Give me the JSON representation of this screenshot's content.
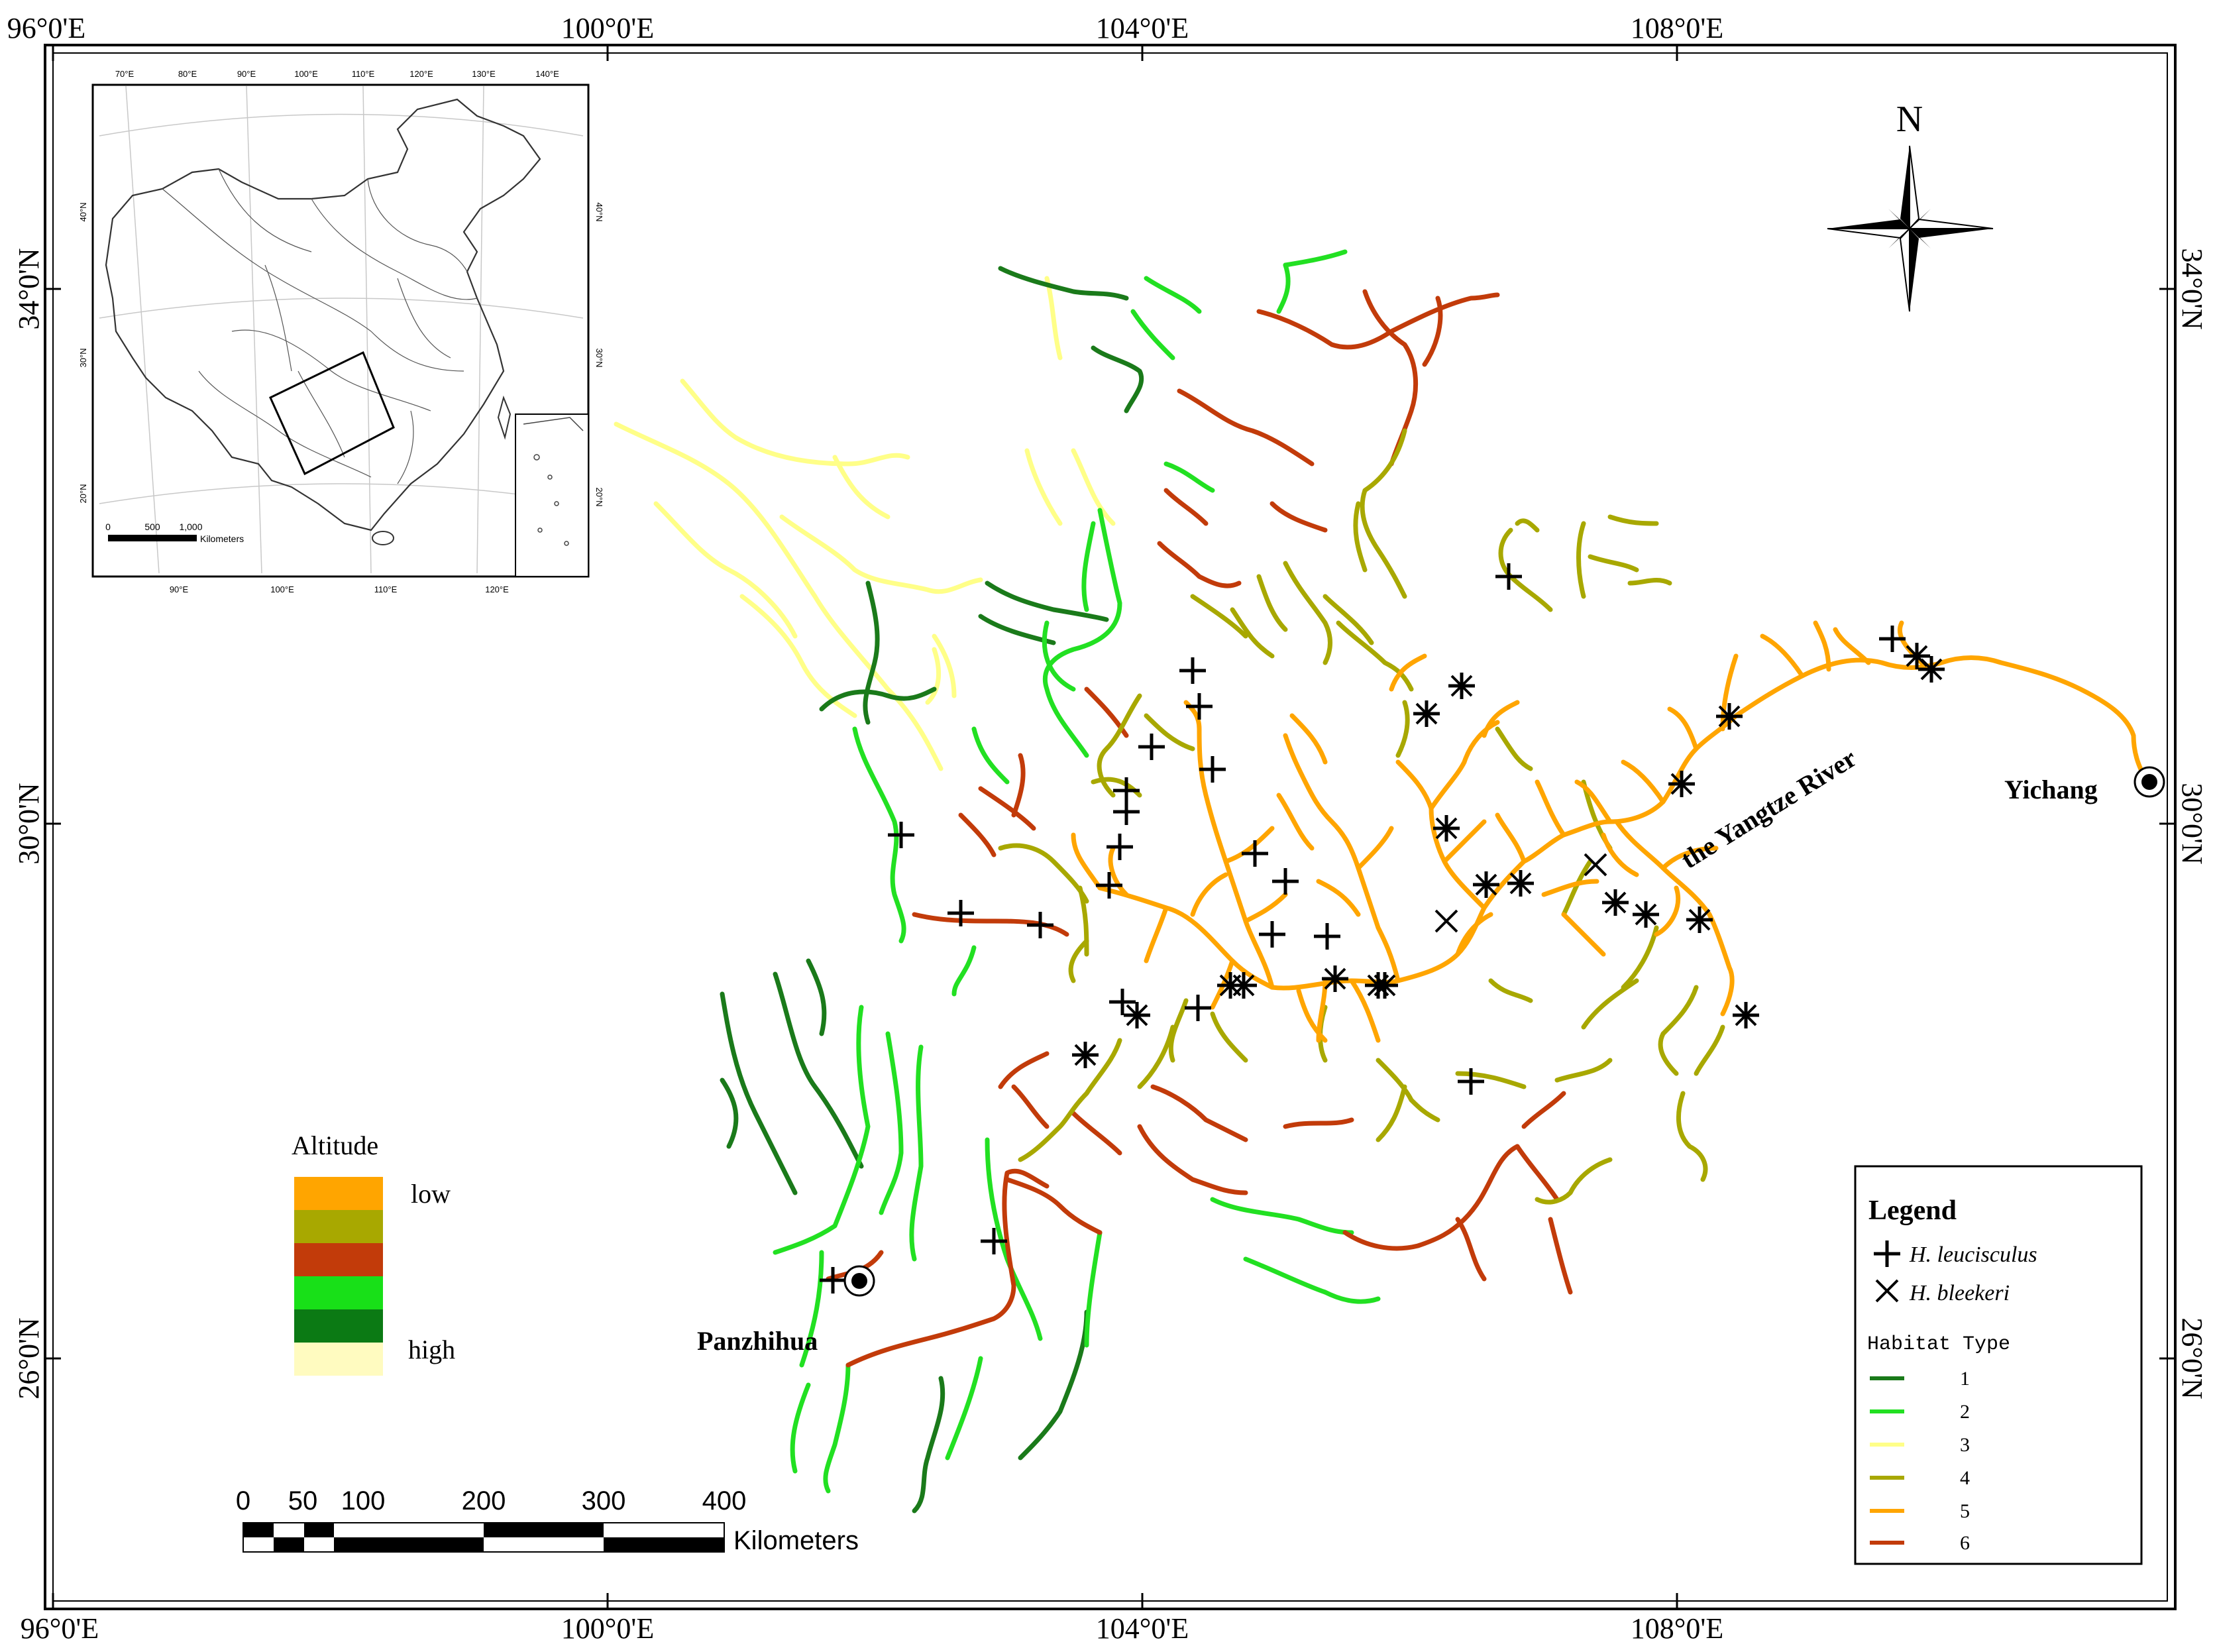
{
  "coordinates": {
    "top_lon": [
      "96°0'E",
      "100°0'E",
      "104°0'E",
      "108°0'E"
    ],
    "bottom_lon": [
      "96°0'E",
      "100°0'E",
      "104°0'E",
      "108°0'E"
    ],
    "left_lat": [
      "34°0'N",
      "30°0'N",
      "26°0'N"
    ],
    "right_lat": [
      "34°0'N",
      "30°0'N",
      "26°0'N"
    ]
  },
  "compass": {
    "label": "N"
  },
  "places": {
    "yichang": "Yichang",
    "panzhihua": "Panzhihua",
    "river": "the Yangtze River"
  },
  "altitude_legend": {
    "title": "Altitude",
    "low": "low",
    "high": "high",
    "colors": [
      "#FFA500",
      "#A8A800",
      "#C23B0A",
      "#18E018",
      "#0B7A14",
      "#FFFBC0"
    ]
  },
  "legend": {
    "title": "Legend",
    "species1": "H. leucisculus",
    "species2": "H. bleekeri",
    "habitat_title": "Habitat Type",
    "habitat_types": [
      {
        "label": "1",
        "color": "#1A7A1A"
      },
      {
        "label": "2",
        "color": "#22E022"
      },
      {
        "label": "3",
        "color": "#FFFF88"
      },
      {
        "label": "4",
        "color": "#A8A800"
      },
      {
        "label": "5",
        "color": "#FFA500"
      },
      {
        "label": "6",
        "color": "#C23B0A"
      }
    ]
  },
  "scale_bar": {
    "ticks": [
      "0",
      "50",
      "100",
      "200",
      "300",
      "400"
    ],
    "unit": "Kilometers"
  },
  "inset": {
    "top_ticks": [
      "70°E",
      "80°E",
      "90°E",
      "100°E",
      "110°E",
      "120°E",
      "130°E",
      "140°E"
    ],
    "bottom_ticks": [
      "90°E",
      "100°E",
      "110°E",
      "120°E"
    ],
    "left_ticks": [
      "40°N",
      "30°N",
      "20°N"
    ],
    "right_ticks": [
      "40°N",
      "30°N",
      "20°N"
    ],
    "scale_ticks": [
      "0",
      "500",
      "1,000"
    ],
    "scale_unit": "Kilometers"
  }
}
